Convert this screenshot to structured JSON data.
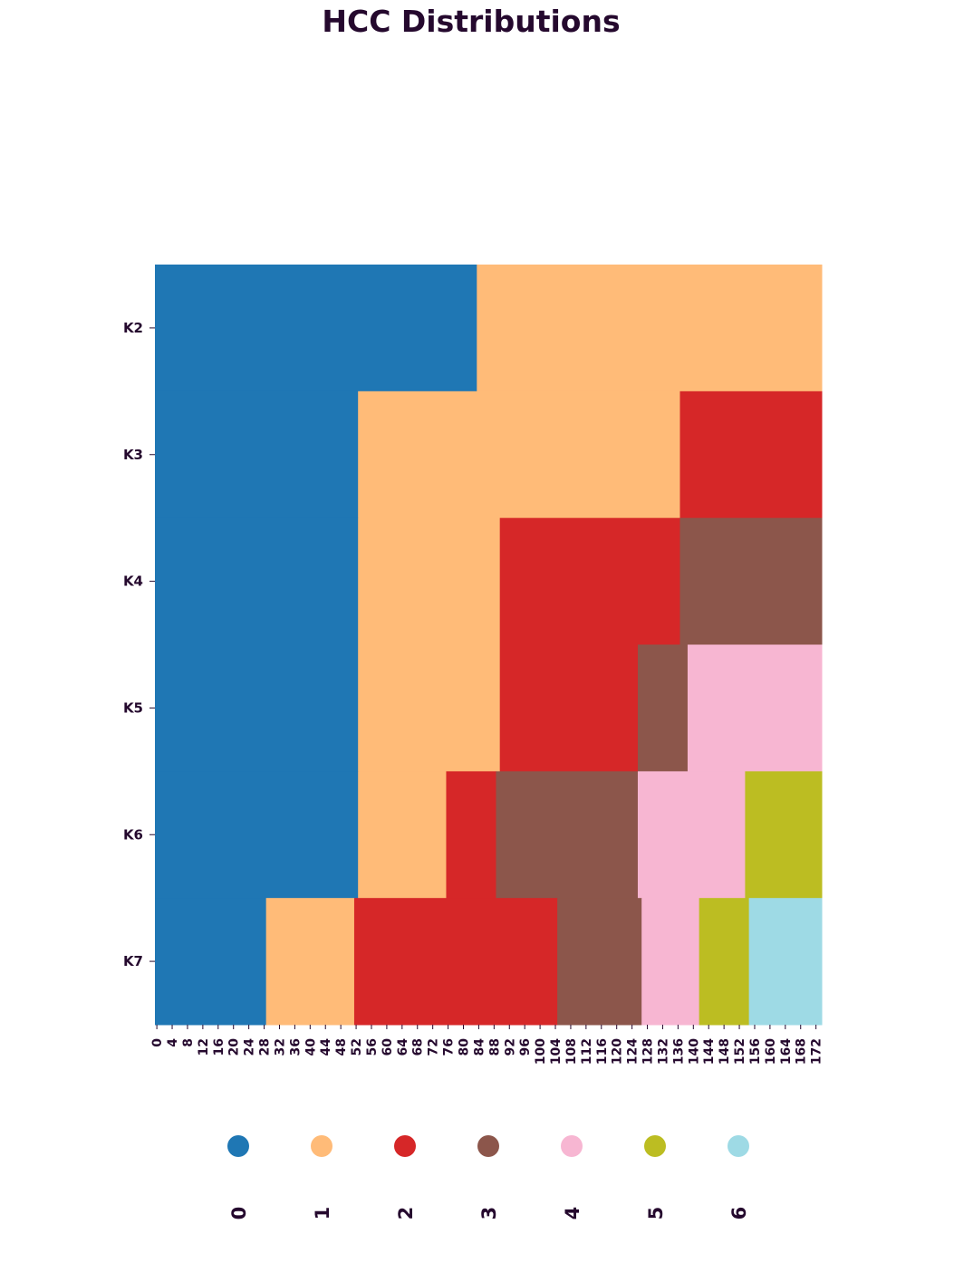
{
  "chart_data": {
    "type": "heatmap",
    "title": "HCC Distributions",
    "xlabel": "",
    "ylabel": "",
    "rows": [
      "K2",
      "K3",
      "K4",
      "K5",
      "K6",
      "K7"
    ],
    "x_range": [
      0,
      174
    ],
    "x_ticks": [
      0,
      4,
      8,
      12,
      16,
      20,
      24,
      28,
      32,
      36,
      40,
      44,
      48,
      52,
      56,
      60,
      64,
      68,
      72,
      76,
      80,
      84,
      88,
      92,
      96,
      100,
      104,
      108,
      112,
      116,
      120,
      124,
      128,
      132,
      136,
      140,
      144,
      148,
      152,
      156,
      160,
      164,
      168,
      172
    ],
    "segments": [
      [
        {
          "start": 0,
          "end": 84,
          "cluster": 0
        },
        {
          "start": 84,
          "end": 174,
          "cluster": 1
        }
      ],
      [
        {
          "start": 0,
          "end": 53,
          "cluster": 0
        },
        {
          "start": 53,
          "end": 137,
          "cluster": 1
        },
        {
          "start": 137,
          "end": 174,
          "cluster": 2
        }
      ],
      [
        {
          "start": 0,
          "end": 53,
          "cluster": 0
        },
        {
          "start": 53,
          "end": 90,
          "cluster": 1
        },
        {
          "start": 90,
          "end": 137,
          "cluster": 2
        },
        {
          "start": 137,
          "end": 174,
          "cluster": 3
        }
      ],
      [
        {
          "start": 0,
          "end": 53,
          "cluster": 0
        },
        {
          "start": 53,
          "end": 90,
          "cluster": 1
        },
        {
          "start": 90,
          "end": 126,
          "cluster": 2
        },
        {
          "start": 126,
          "end": 139,
          "cluster": 3
        },
        {
          "start": 139,
          "end": 174,
          "cluster": 4
        }
      ],
      [
        {
          "start": 0,
          "end": 53,
          "cluster": 0
        },
        {
          "start": 53,
          "end": 76,
          "cluster": 1
        },
        {
          "start": 76,
          "end": 89,
          "cluster": 2
        },
        {
          "start": 89,
          "end": 126,
          "cluster": 3
        },
        {
          "start": 126,
          "end": 154,
          "cluster": 4
        },
        {
          "start": 154,
          "end": 174,
          "cluster": 5
        }
      ],
      [
        {
          "start": 0,
          "end": 29,
          "cluster": 0
        },
        {
          "start": 29,
          "end": 52,
          "cluster": 1
        },
        {
          "start": 52,
          "end": 105,
          "cluster": 2
        },
        {
          "start": 105,
          "end": 127,
          "cluster": 3
        },
        {
          "start": 127,
          "end": 142,
          "cluster": 4
        },
        {
          "start": 142,
          "end": 155,
          "cluster": 5
        },
        {
          "start": 155,
          "end": 174,
          "cluster": 6
        }
      ]
    ],
    "legend": [
      {
        "label": "0",
        "color": "#1f77b4"
      },
      {
        "label": "1",
        "color": "#ffbb78"
      },
      {
        "label": "2",
        "color": "#d62728"
      },
      {
        "label": "3",
        "color": "#8c564b"
      },
      {
        "label": "4",
        "color": "#f7b6d2"
      },
      {
        "label": "5",
        "color": "#bcbd22"
      },
      {
        "label": "6",
        "color": "#9edae5"
      }
    ],
    "text_color": "#25092e"
  }
}
